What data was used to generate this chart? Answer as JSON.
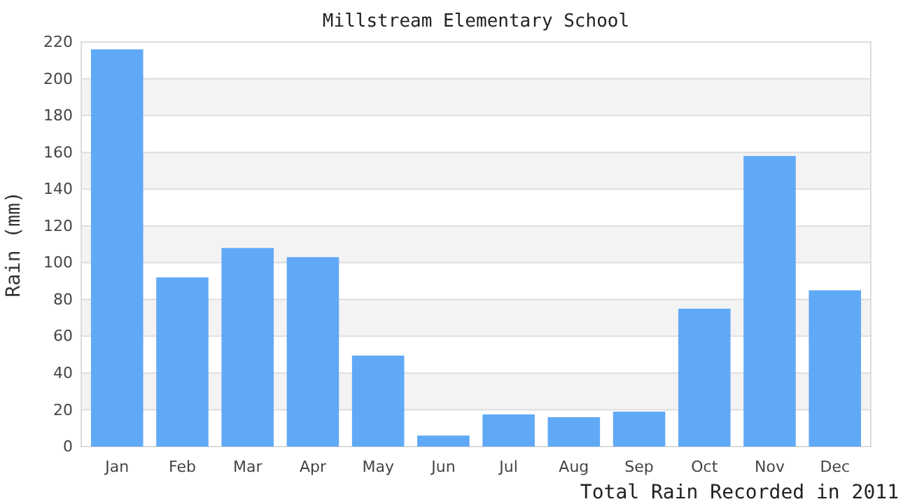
{
  "chart_data": {
    "type": "bar",
    "title": "Millstream Elementary School",
    "xlabel": "Total Rain Recorded in 2011",
    "ylabel": "Rain (mm)",
    "categories": [
      "Jan",
      "Feb",
      "Mar",
      "Apr",
      "May",
      "Jun",
      "Jul",
      "Aug",
      "Sep",
      "Oct",
      "Nov",
      "Dec"
    ],
    "values": [
      216,
      92,
      108,
      103,
      49.5,
      6,
      17.5,
      16,
      19,
      75,
      158,
      85
    ],
    "color": "#60a9f6",
    "ylim": [
      0,
      220
    ],
    "yticks": [
      0,
      20,
      40,
      60,
      80,
      100,
      120,
      140,
      160,
      180,
      200,
      220
    ],
    "grid": "y"
  }
}
